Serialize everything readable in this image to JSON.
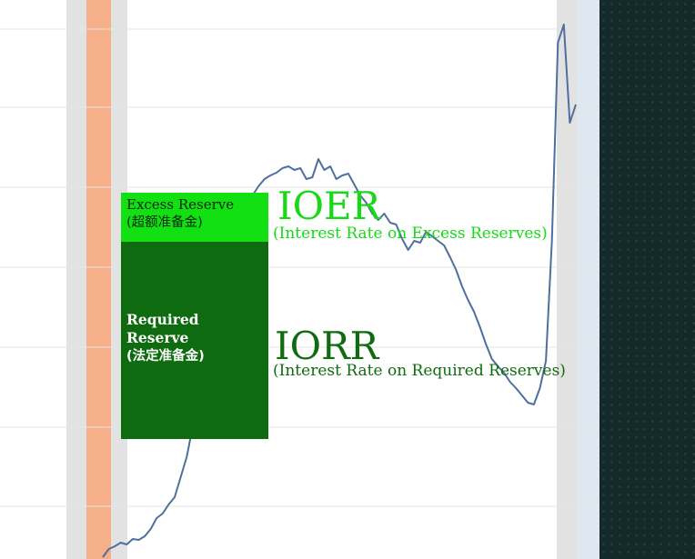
{
  "colors": {
    "background": "#ffffff",
    "gridline": "#e6e6e6",
    "side_shade": "#e2e2e2",
    "recession_band": "#f5b08a",
    "line": "#4f6f9f",
    "right_shade": "#dfe7f0",
    "dark_panel": "#142a2a",
    "excess_green": "#12e012",
    "required_green": "#0f6b0f"
  },
  "excess_box": {
    "title": "Excess Reserve",
    "subtitle": "(超额准备金)"
  },
  "required_box": {
    "title": "Required Reserve",
    "subtitle": "(法定准备金)"
  },
  "ioer": {
    "abbr": "IOER",
    "full": "(Interest Rate on Excess Reserves)"
  },
  "iorr": {
    "abbr": "IORR",
    "full": "(Interest Rate on Required Reserves)"
  },
  "line_series": {
    "values": [
      2,
      11,
      14,
      18,
      16,
      22,
      21,
      25,
      33,
      45,
      50,
      60,
      68,
      90,
      112,
      145,
      178,
      210,
      240,
      270,
      292,
      320,
      340,
      360,
      380,
      400,
      410,
      418,
      422,
      425,
      430,
      432,
      428,
      430,
      418,
      420,
      440,
      428,
      432,
      418,
      422,
      424,
      412,
      400,
      392,
      380,
      373,
      380,
      370,
      368,
      352,
      340,
      350,
      348,
      360,
      355,
      350,
      345,
      332,
      318,
      300,
      285,
      272,
      255,
      236,
      220,
      212,
      205,
      195,
      188,
      180,
      172,
      170,
      188,
      218,
      350,
      568,
      588,
      480,
      500
    ]
  }
}
